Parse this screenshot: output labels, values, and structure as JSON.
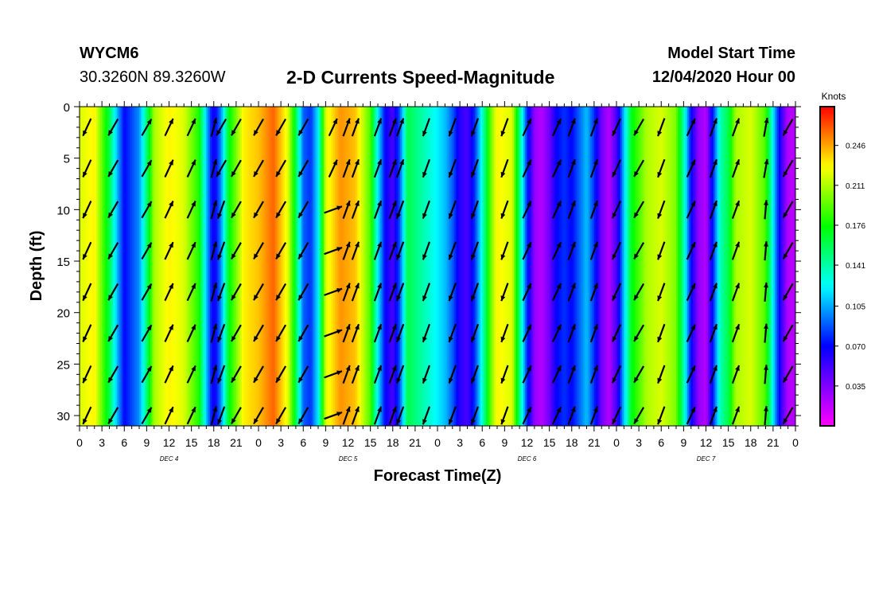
{
  "header": {
    "station": "WYCM6",
    "coords": "30.3260N 89.3260W",
    "title": "2-D Currents Speed-Magnitude",
    "model_start_label": "Model Start Time",
    "model_start_value": "12/04/2020 Hour 00"
  },
  "chart_data": {
    "type": "heatmap",
    "title": "2-D Currents Speed-Magnitude",
    "xlabel": "Forecast Time(Z)",
    "ylabel": "Depth (ft)",
    "colorbar_label": "Knots",
    "x_tick_labels": [
      "0",
      "3",
      "6",
      "9",
      "12",
      "15",
      "18",
      "21",
      "0",
      "3",
      "6",
      "9",
      "12",
      "15",
      "18",
      "21",
      "0",
      "3",
      "6",
      "9",
      "12",
      "15",
      "18",
      "21",
      "0",
      "3",
      "6",
      "9",
      "12",
      "15",
      "18",
      "21",
      "0"
    ],
    "day_labels": [
      "DEC 4",
      "DEC 5",
      "DEC 6",
      "DEC 7"
    ],
    "y_ticks": [
      0,
      5,
      10,
      15,
      20,
      25,
      30
    ],
    "ylim": [
      31,
      0
    ],
    "xlim_hours": [
      0,
      96
    ],
    "colorbar_ticks": [
      0.246,
      0.211,
      0.176,
      0.141,
      0.105,
      0.07,
      0.035
    ],
    "colorbar_range": [
      0.0,
      0.28
    ],
    "speed_profile_knots_by_hour": [
      [
        0,
        0.22
      ],
      [
        2,
        0.23
      ],
      [
        4,
        0.16
      ],
      [
        5,
        0.11
      ],
      [
        6,
        0.07
      ],
      [
        8,
        0.1
      ],
      [
        9,
        0.15
      ],
      [
        10,
        0.21
      ],
      [
        12,
        0.23
      ],
      [
        14,
        0.22
      ],
      [
        16,
        0.18
      ],
      [
        17,
        0.11
      ],
      [
        18,
        0.06
      ],
      [
        19,
        0.1
      ],
      [
        20,
        0.17
      ],
      [
        21,
        0.2
      ],
      [
        22,
        0.23
      ],
      [
        24,
        0.24
      ],
      [
        26,
        0.26
      ],
      [
        28,
        0.22
      ],
      [
        29,
        0.16
      ],
      [
        30,
        0.09
      ],
      [
        31,
        0.08
      ],
      [
        32,
        0.12
      ],
      [
        33,
        0.22
      ],
      [
        35,
        0.25
      ],
      [
        37,
        0.24
      ],
      [
        39,
        0.19
      ],
      [
        40,
        0.12
      ],
      [
        41,
        0.07
      ],
      [
        42,
        0.05
      ],
      [
        43,
        0.09
      ],
      [
        44,
        0.16
      ],
      [
        45,
        0.15
      ],
      [
        47,
        0.13
      ],
      [
        49,
        0.11
      ],
      [
        50,
        0.09
      ],
      [
        51,
        0.06
      ],
      [
        52,
        0.05
      ],
      [
        53,
        0.08
      ],
      [
        54,
        0.13
      ],
      [
        55,
        0.19
      ],
      [
        56,
        0.23
      ],
      [
        58,
        0.22
      ],
      [
        59,
        0.15
      ],
      [
        60,
        0.08
      ],
      [
        61,
        0.03
      ],
      [
        62,
        0.02
      ],
      [
        63,
        0.04
      ],
      [
        64,
        0.07
      ],
      [
        65,
        0.08
      ],
      [
        66,
        0.07
      ],
      [
        67,
        0.09
      ],
      [
        68,
        0.11
      ],
      [
        69,
        0.08
      ],
      [
        70,
        0.04
      ],
      [
        71,
        0.02
      ],
      [
        72,
        0.05
      ],
      [
        73,
        0.11
      ],
      [
        74,
        0.17
      ],
      [
        76,
        0.21
      ],
      [
        78,
        0.22
      ],
      [
        80,
        0.2
      ],
      [
        81,
        0.14
      ],
      [
        82,
        0.07
      ],
      [
        83,
        0.03
      ],
      [
        84,
        0.02
      ],
      [
        85,
        0.08
      ],
      [
        86,
        0.14
      ],
      [
        87,
        0.16
      ],
      [
        88,
        0.21
      ],
      [
        90,
        0.22
      ],
      [
        92,
        0.19
      ],
      [
        93,
        0.12
      ],
      [
        94,
        0.06
      ],
      [
        95,
        0.02
      ],
      [
        96,
        0.02
      ]
    ],
    "vector_times_hours": [
      1,
      4.5,
      9,
      12,
      15,
      18,
      19,
      21,
      24,
      27,
      30,
      34,
      35.8,
      37,
      40,
      42,
      43,
      46.5,
      50,
      53,
      57,
      60,
      64,
      66,
      69,
      72,
      75,
      78,
      82,
      85,
      88,
      92,
      95
    ],
    "vector_depths_ft": [
      2,
      6,
      10,
      14,
      18,
      22,
      26,
      30
    ],
    "vector_dirs_deg": [
      [
        205,
        205,
        205,
        205,
        205,
        205,
        205,
        205
      ],
      [
        210,
        210,
        210,
        210,
        210,
        210,
        210,
        210
      ],
      [
        30,
        30,
        30,
        30,
        30,
        30,
        30,
        30
      ],
      [
        25,
        25,
        25,
        25,
        25,
        25,
        25,
        25
      ],
      [
        25,
        25,
        25,
        25,
        25,
        25,
        25,
        25
      ],
      [
        15,
        15,
        15,
        15,
        15,
        15,
        15,
        15
      ],
      [
        210,
        210,
        200,
        200,
        200,
        200,
        200,
        200
      ],
      [
        210,
        210,
        210,
        210,
        210,
        210,
        210,
        210
      ],
      [
        210,
        210,
        210,
        210,
        210,
        210,
        210,
        210
      ],
      [
        210,
        210,
        210,
        210,
        210,
        210,
        210,
        210
      ],
      [
        210,
        210,
        210,
        210,
        210,
        210,
        210,
        210
      ],
      [
        25,
        25,
        70,
        70,
        70,
        70,
        70,
        70
      ],
      [
        20,
        20,
        20,
        20,
        20,
        20,
        20,
        20
      ],
      [
        20,
        20,
        20,
        20,
        20,
        20,
        20,
        20
      ],
      [
        20,
        20,
        20,
        20,
        20,
        20,
        20,
        20
      ],
      [
        20,
        20,
        20,
        20,
        20,
        20,
        20,
        20
      ],
      [
        20,
        20,
        200,
        200,
        200,
        200,
        200,
        200
      ],
      [
        200,
        200,
        200,
        200,
        200,
        200,
        200,
        200
      ],
      [
        200,
        200,
        200,
        200,
        200,
        200,
        200,
        200
      ],
      [
        200,
        200,
        200,
        200,
        200,
        200,
        200,
        200
      ],
      [
        200,
        200,
        200,
        200,
        200,
        200,
        200,
        200
      ],
      [
        25,
        25,
        25,
        25,
        25,
        25,
        25,
        25
      ],
      [
        25,
        25,
        25,
        25,
        25,
        25,
        25,
        25
      ],
      [
        20,
        20,
        20,
        20,
        20,
        20,
        20,
        20
      ],
      [
        20,
        20,
        20,
        20,
        20,
        20,
        20,
        20
      ],
      [
        205,
        205,
        205,
        205,
        205,
        205,
        205,
        205
      ],
      [
        210,
        210,
        210,
        210,
        210,
        210,
        210,
        210
      ],
      [
        200,
        200,
        200,
        200,
        200,
        200,
        200,
        200
      ],
      [
        25,
        25,
        25,
        25,
        25,
        25,
        25,
        25
      ],
      [
        20,
        20,
        20,
        20,
        20,
        20,
        20,
        20
      ],
      [
        20,
        20,
        20,
        20,
        20,
        20,
        20,
        20
      ],
      [
        10,
        10,
        5,
        5,
        5,
        5,
        5,
        5
      ],
      [
        210,
        210,
        210,
        210,
        210,
        210,
        210,
        210
      ]
    ]
  }
}
